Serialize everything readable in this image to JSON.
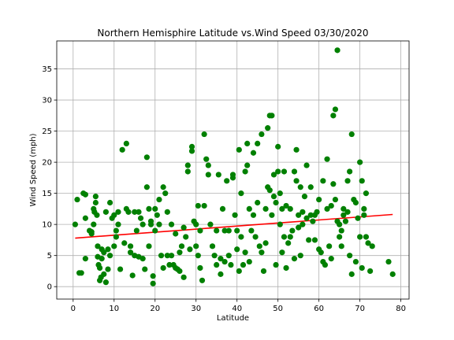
{
  "chart_data": {
    "type": "scatter",
    "title": "Northern Hemisphire Latitude vs.Wind Speed 03/30/2020",
    "xlabel": "Latitude",
    "ylabel": "Wind Speed (mph)",
    "xlim": [
      -4,
      82
    ],
    "ylim": [
      -2,
      39.5
    ],
    "xticks": [
      0,
      10,
      20,
      30,
      40,
      50,
      60,
      70,
      80
    ],
    "yticks": [
      0,
      5,
      10,
      15,
      20,
      25,
      30,
      35
    ],
    "grid": true,
    "point_color": "#008000",
    "line_color": "#ff0000",
    "regression": {
      "x": [
        0.5,
        78
      ],
      "y": [
        7.8,
        11.6
      ]
    },
    "points": [
      [
        0.5,
        10.0
      ],
      [
        1,
        14.0
      ],
      [
        1.5,
        2.2
      ],
      [
        2,
        2.2
      ],
      [
        2.5,
        15.0
      ],
      [
        3,
        14.8
      ],
      [
        3,
        4.5
      ],
      [
        3,
        11.0
      ],
      [
        4,
        9.0
      ],
      [
        4.5,
        8.5
      ],
      [
        4.5,
        8.8
      ],
      [
        5,
        12.5
      ],
      [
        5,
        10.0
      ],
      [
        5.2,
        12.0
      ],
      [
        5.5,
        14.5
      ],
      [
        5.5,
        13.5
      ],
      [
        5.8,
        11.5
      ],
      [
        6,
        6.5
      ],
      [
        6,
        4.8
      ],
      [
        6.2,
        3.5
      ],
      [
        6.5,
        3.0
      ],
      [
        6.5,
        1.0
      ],
      [
        6.8,
        1.5
      ],
      [
        7,
        6.0
      ],
      [
        7,
        4.5
      ],
      [
        7.5,
        2.0
      ],
      [
        7.5,
        5.5
      ],
      [
        8,
        12.0
      ],
      [
        8,
        0.7
      ],
      [
        8.5,
        6.0
      ],
      [
        8.5,
        2.8
      ],
      [
        9,
        13.5
      ],
      [
        9,
        5.0
      ],
      [
        9.5,
        11.0
      ],
      [
        10,
        11.5
      ],
      [
        10,
        6.5
      ],
      [
        10.5,
        9.0
      ],
      [
        10.5,
        8.0
      ],
      [
        11,
        10.0
      ],
      [
        11,
        12.0
      ],
      [
        11.5,
        2.8
      ],
      [
        12,
        22.0
      ],
      [
        12.5,
        7.0
      ],
      [
        13,
        23.0
      ],
      [
        13,
        12.5
      ],
      [
        13.5,
        12.0
      ],
      [
        14,
        6.5
      ],
      [
        14,
        5.5
      ],
      [
        14.5,
        1.8
      ],
      [
        15,
        12.0
      ],
      [
        15,
        5.0
      ],
      [
        15.5,
        9.0
      ],
      [
        16,
        12.0
      ],
      [
        16,
        4.8
      ],
      [
        16.5,
        11.0
      ],
      [
        17,
        10.0
      ],
      [
        17,
        4.5
      ],
      [
        17.5,
        2.8
      ],
      [
        18,
        20.8
      ],
      [
        18,
        16.0
      ],
      [
        18.5,
        12.5
      ],
      [
        18.5,
        6.5
      ],
      [
        19,
        10.5
      ],
      [
        19,
        10.0
      ],
      [
        19.5,
        1.7
      ],
      [
        19.5,
        0.5
      ],
      [
        20,
        12.5
      ],
      [
        20,
        9.0
      ],
      [
        20.5,
        11.5
      ],
      [
        21,
        14.0
      ],
      [
        21,
        10.0
      ],
      [
        21.5,
        5.0
      ],
      [
        22,
        16.0
      ],
      [
        22,
        3.0
      ],
      [
        22.5,
        15.0
      ],
      [
        23,
        12.0
      ],
      [
        23,
        5.0
      ],
      [
        23.5,
        3.5
      ],
      [
        24,
        10.0
      ],
      [
        24,
        5.0
      ],
      [
        24.5,
        3.5
      ],
      [
        25,
        8.5
      ],
      [
        25,
        3.0
      ],
      [
        25.5,
        2.8
      ],
      [
        26,
        5.5
      ],
      [
        26,
        2.5
      ],
      [
        26.5,
        6.5
      ],
      [
        27,
        9.5
      ],
      [
        27,
        1.5
      ],
      [
        27.5,
        8.0
      ],
      [
        28,
        19.5
      ],
      [
        28,
        18.5
      ],
      [
        28.5,
        6.0
      ],
      [
        29,
        22.5
      ],
      [
        29,
        21.8
      ],
      [
        29.5,
        10.5
      ],
      [
        30,
        10.0
      ],
      [
        30,
        6.5
      ],
      [
        30.5,
        13.0
      ],
      [
        30.5,
        5.0
      ],
      [
        31,
        3.0
      ],
      [
        31,
        9.0
      ],
      [
        31.5,
        1.0
      ],
      [
        32,
        24.5
      ],
      [
        32,
        13.0
      ],
      [
        32.5,
        20.5
      ],
      [
        33,
        19.5
      ],
      [
        33,
        18.0
      ],
      [
        33.5,
        10.0
      ],
      [
        34,
        6.5
      ],
      [
        34.5,
        5.0
      ],
      [
        35,
        9.0
      ],
      [
        35,
        3.5
      ],
      [
        35.5,
        18.0
      ],
      [
        36,
        4.5
      ],
      [
        36,
        2.0
      ],
      [
        36.5,
        12.5
      ],
      [
        37,
        9.0
      ],
      [
        37,
        4.0
      ],
      [
        37.5,
        17.0
      ],
      [
        38,
        9.0
      ],
      [
        38,
        5.0
      ],
      [
        38.5,
        3.5
      ],
      [
        39,
        17.5
      ],
      [
        39,
        18.0
      ],
      [
        39.5,
        11.5
      ],
      [
        40,
        9.0
      ],
      [
        40,
        6.0
      ],
      [
        40.5,
        22.0
      ],
      [
        40.5,
        2.5
      ],
      [
        41,
        15.0
      ],
      [
        41,
        8.0
      ],
      [
        41.5,
        3.5
      ],
      [
        42,
        18.5
      ],
      [
        42,
        5.5
      ],
      [
        42.5,
        23.0
      ],
      [
        42.5,
        19.5
      ],
      [
        43,
        12.5
      ],
      [
        43,
        4.0
      ],
      [
        43.5,
        9.0
      ],
      [
        44,
        21.5
      ],
      [
        44,
        11.5
      ],
      [
        44.5,
        8.0
      ],
      [
        45,
        23.0
      ],
      [
        45,
        13.5
      ],
      [
        45.5,
        6.5
      ],
      [
        46,
        24.5
      ],
      [
        46,
        5.5
      ],
      [
        46.5,
        2.5
      ],
      [
        47,
        12.5
      ],
      [
        47,
        7.0
      ],
      [
        47.5,
        25.5
      ],
      [
        47.5,
        16.0
      ],
      [
        48,
        27.5
      ],
      [
        48,
        15.5
      ],
      [
        48.5,
        27.5
      ],
      [
        48.5,
        11.5
      ],
      [
        49,
        18.0
      ],
      [
        49,
        14.5
      ],
      [
        49.5,
        13.5
      ],
      [
        49.5,
        3.5
      ],
      [
        50,
        22.5
      ],
      [
        50,
        18.5
      ],
      [
        50.5,
        15.0
      ],
      [
        50.5,
        10.0
      ],
      [
        51,
        12.5
      ],
      [
        51,
        5.5
      ],
      [
        51.5,
        18.5
      ],
      [
        51.5,
        8.0
      ],
      [
        52,
        13.0
      ],
      [
        52,
        3.0
      ],
      [
        52.5,
        7.0
      ],
      [
        53,
        12.5
      ],
      [
        53,
        8.0
      ],
      [
        53.5,
        9.0
      ],
      [
        54,
        18.5
      ],
      [
        54,
        4.5
      ],
      [
        54.5,
        22.0
      ],
      [
        54.5,
        17.0
      ],
      [
        55,
        11.5
      ],
      [
        55,
        9.5
      ],
      [
        55.5,
        16.0
      ],
      [
        55.5,
        5.0
      ],
      [
        56,
        12.0
      ],
      [
        56,
        10.0
      ],
      [
        56.5,
        14.5
      ],
      [
        57,
        19.5
      ],
      [
        57,
        11.0
      ],
      [
        57.5,
        7.5
      ],
      [
        58,
        16.0
      ],
      [
        58,
        11.5
      ],
      [
        58.5,
        10.5
      ],
      [
        59,
        11.5
      ],
      [
        59,
        7.5
      ],
      [
        59.5,
        12.0
      ],
      [
        60,
        14.0
      ],
      [
        60,
        6.0
      ],
      [
        60.5,
        5.5
      ],
      [
        61,
        17.0
      ],
      [
        61,
        4.0
      ],
      [
        61.5,
        3.5
      ],
      [
        62,
        20.5
      ],
      [
        62,
        12.5
      ],
      [
        62.5,
        6.5
      ],
      [
        63,
        13.0
      ],
      [
        63,
        4.5
      ],
      [
        63.5,
        27.5
      ],
      [
        63.5,
        16.5
      ],
      [
        64,
        28.5
      ],
      [
        64,
        14.0
      ],
      [
        64.5,
        38.0
      ],
      [
        64.5,
        10.5
      ],
      [
        65,
        10.0
      ],
      [
        65,
        8.0
      ],
      [
        65.5,
        9.0
      ],
      [
        65.5,
        6.5
      ],
      [
        66,
        12.5
      ],
      [
        66,
        11.5
      ],
      [
        66.5,
        10.5
      ],
      [
        67,
        17.0
      ],
      [
        67,
        12.0
      ],
      [
        67.5,
        18.5
      ],
      [
        67.5,
        5.0
      ],
      [
        68,
        24.5
      ],
      [
        68,
        2.0
      ],
      [
        68.5,
        14.0
      ],
      [
        69,
        13.5
      ],
      [
        69,
        4.0
      ],
      [
        69.5,
        11.0
      ],
      [
        70,
        20.0
      ],
      [
        70,
        8.0
      ],
      [
        70.5,
        17.0
      ],
      [
        70.5,
        3.0
      ],
      [
        71,
        12.5
      ],
      [
        71,
        11.5
      ],
      [
        71.5,
        15.0
      ],
      [
        71.5,
        8.0
      ],
      [
        72,
        7.0
      ],
      [
        72.5,
        2.5
      ],
      [
        73,
        6.5
      ],
      [
        77,
        4.0
      ],
      [
        78,
        2.0
      ]
    ]
  }
}
